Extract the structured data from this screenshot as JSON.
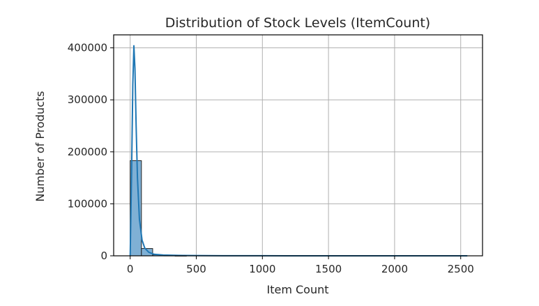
{
  "chart_data": {
    "type": "bar",
    "title": "Distribution of Stock Levels (ItemCount)",
    "xlabel": "Item Count",
    "ylabel": "Number of Products",
    "xlim": [
      -125,
      2665
    ],
    "ylim": [
      0,
      425000
    ],
    "xticks": [
      0,
      500,
      1000,
      1500,
      2000,
      2500
    ],
    "yticks": [
      0,
      100000,
      200000,
      300000,
      400000
    ],
    "xtick_labels": [
      "0",
      "500",
      "1000",
      "1500",
      "2000",
      "2500"
    ],
    "ytick_labels": [
      "0",
      "100000",
      "200000",
      "300000",
      "400000"
    ],
    "grid": true,
    "bin_width": 85,
    "histogram": [
      {
        "x0": 0,
        "x1": 85,
        "count": 183000
      },
      {
        "x0": 85,
        "x1": 170,
        "count": 14000
      },
      {
        "x0": 170,
        "x1": 255,
        "count": 2000
      },
      {
        "x0": 255,
        "x1": 340,
        "count": 600
      },
      {
        "x0": 340,
        "x1": 425,
        "count": 200
      }
    ],
    "kde": {
      "x": [
        0,
        10,
        20,
        28,
        36,
        45,
        55,
        70,
        90,
        110,
        140,
        180,
        250,
        400,
        700,
        1200,
        2000,
        2550
      ],
      "y": [
        0,
        150000,
        330000,
        404000,
        360000,
        250000,
        150000,
        70000,
        30000,
        15000,
        7000,
        3000,
        1500,
        600,
        200,
        80,
        40,
        20
      ]
    },
    "colors": {
      "bar_fill": "#7fb0d5",
      "bar_edge": "#222222",
      "kde_line": "#1f77b4",
      "grid": "#b0b0b0"
    }
  }
}
